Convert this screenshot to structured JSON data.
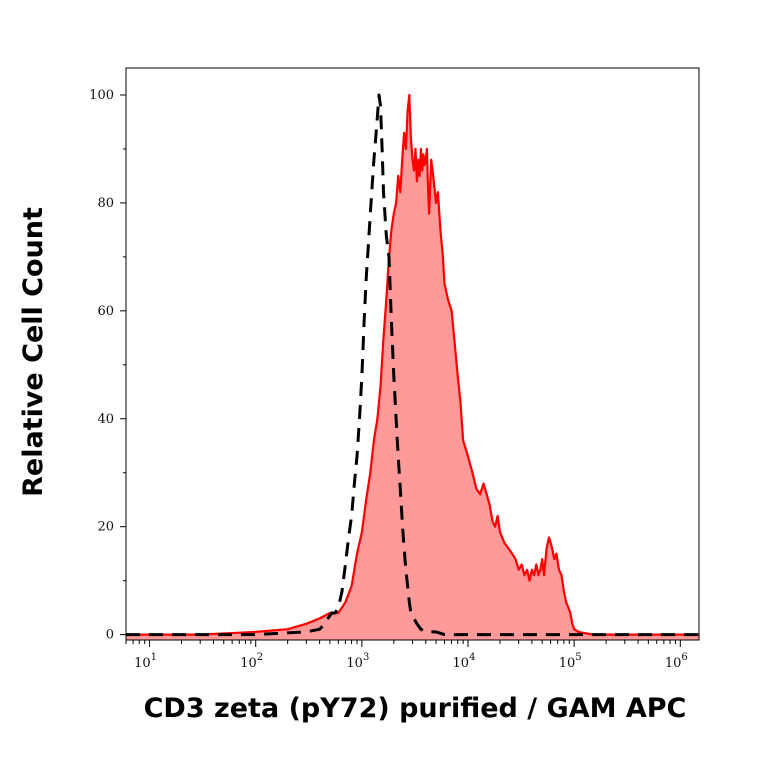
{
  "chart_data": {
    "type": "area",
    "title": "",
    "xlabel": "CD3 zeta (pY72) purified / GAM APC",
    "ylabel": "Relative Cell Count",
    "xscale": "log",
    "xlim": [
      6,
      1500000
    ],
    "ylim": [
      -1,
      105
    ],
    "grid": false,
    "y_ticks": [
      0,
      20,
      40,
      60,
      80,
      100
    ],
    "y_tick_labels": [
      "0",
      "20",
      "40",
      "60",
      "80",
      "100"
    ],
    "x_ticks": [
      {
        "base": "10",
        "exp": "1",
        "value": 10
      },
      {
        "base": "10",
        "exp": "2",
        "value": 100
      },
      {
        "base": "10",
        "exp": "3",
        "value": 1000
      },
      {
        "base": "10",
        "exp": "4",
        "value": 10000
      },
      {
        "base": "10",
        "exp": "5",
        "value": 100000
      },
      {
        "base": "10",
        "exp": "6",
        "value": 1000000
      }
    ],
    "series": [
      {
        "style": "filled",
        "color": "#ff0000",
        "fill": "#ff9a9a",
        "points": [
          [
            6,
            0
          ],
          [
            30,
            0
          ],
          [
            100,
            0.5
          ],
          [
            200,
            1
          ],
          [
            300,
            2
          ],
          [
            400,
            3
          ],
          [
            500,
            4
          ],
          [
            600,
            4
          ],
          [
            700,
            6
          ],
          [
            800,
            9
          ],
          [
            900,
            15
          ],
          [
            1000,
            19
          ],
          [
            1100,
            25
          ],
          [
            1200,
            30
          ],
          [
            1300,
            36
          ],
          [
            1400,
            40
          ],
          [
            1500,
            46
          ],
          [
            1600,
            55
          ],
          [
            1700,
            62
          ],
          [
            1800,
            70
          ],
          [
            1900,
            75
          ],
          [
            2000,
            78
          ],
          [
            2100,
            80
          ],
          [
            2200,
            85
          ],
          [
            2300,
            82
          ],
          [
            2400,
            88
          ],
          [
            2500,
            93
          ],
          [
            2600,
            90
          ],
          [
            2700,
            97
          ],
          [
            2800,
            100
          ],
          [
            2900,
            92
          ],
          [
            3000,
            88
          ],
          [
            3100,
            86
          ],
          [
            3200,
            90
          ],
          [
            3300,
            84
          ],
          [
            3400,
            88
          ],
          [
            3500,
            85
          ],
          [
            3600,
            90
          ],
          [
            3700,
            86
          ],
          [
            3800,
            89
          ],
          [
            3900,
            87
          ],
          [
            4000,
            88
          ],
          [
            4100,
            90
          ],
          [
            4200,
            83
          ],
          [
            4300,
            78
          ],
          [
            4500,
            88
          ],
          [
            4700,
            85
          ],
          [
            5000,
            80
          ],
          [
            5200,
            82
          ],
          [
            5500,
            75
          ],
          [
            5800,
            70
          ],
          [
            6000,
            65
          ],
          [
            6500,
            62
          ],
          [
            7000,
            60
          ],
          [
            7500,
            54
          ],
          [
            8000,
            48
          ],
          [
            8500,
            43
          ],
          [
            9000,
            36
          ],
          [
            10000,
            33
          ],
          [
            11000,
            30
          ],
          [
            12000,
            27
          ],
          [
            13000,
            26
          ],
          [
            14000,
            28
          ],
          [
            15000,
            26
          ],
          [
            16000,
            24
          ],
          [
            17000,
            21
          ],
          [
            18000,
            20
          ],
          [
            19000,
            22
          ],
          [
            20000,
            19
          ],
          [
            21000,
            18
          ],
          [
            22000,
            17
          ],
          [
            24000,
            16
          ],
          [
            26000,
            15
          ],
          [
            28000,
            14
          ],
          [
            30000,
            12
          ],
          [
            32000,
            13
          ],
          [
            34000,
            11
          ],
          [
            36000,
            12
          ],
          [
            38000,
            10
          ],
          [
            40000,
            12
          ],
          [
            42000,
            11
          ],
          [
            44000,
            13
          ],
          [
            46000,
            11
          ],
          [
            48000,
            12
          ],
          [
            50000,
            14
          ],
          [
            52000,
            11
          ],
          [
            55000,
            16
          ],
          [
            58000,
            18
          ],
          [
            60000,
            17
          ],
          [
            62000,
            16
          ],
          [
            65000,
            14
          ],
          [
            68000,
            15
          ],
          [
            72000,
            12
          ],
          [
            76000,
            11
          ],
          [
            80000,
            8
          ],
          [
            84000,
            6
          ],
          [
            88000,
            5
          ],
          [
            92000,
            4
          ],
          [
            96000,
            2
          ],
          [
            100000,
            1
          ],
          [
            110000,
            0.5
          ],
          [
            150000,
            0
          ],
          [
            500000,
            0
          ],
          [
            1500000,
            0
          ]
        ]
      },
      {
        "style": "dashed",
        "color": "#000000",
        "points": [
          [
            6,
            0
          ],
          [
            100,
            0
          ],
          [
            300,
            0.5
          ],
          [
            400,
            1
          ],
          [
            450,
            2
          ],
          [
            480,
            3
          ],
          [
            520,
            4
          ],
          [
            560,
            4
          ],
          [
            600,
            5
          ],
          [
            650,
            8
          ],
          [
            700,
            13
          ],
          [
            750,
            18
          ],
          [
            800,
            22
          ],
          [
            850,
            28
          ],
          [
            900,
            33
          ],
          [
            950,
            40
          ],
          [
            1000,
            48
          ],
          [
            1050,
            58
          ],
          [
            1100,
            66
          ],
          [
            1150,
            72
          ],
          [
            1200,
            78
          ],
          [
            1250,
            83
          ],
          [
            1300,
            88
          ],
          [
            1350,
            92
          ],
          [
            1400,
            96
          ],
          [
            1450,
            100
          ],
          [
            1500,
            98
          ],
          [
            1550,
            90
          ],
          [
            1600,
            82
          ],
          [
            1700,
            74
          ],
          [
            1800,
            70
          ],
          [
            1900,
            58
          ],
          [
            2000,
            48
          ],
          [
            2100,
            40
          ],
          [
            2200,
            33
          ],
          [
            2300,
            27
          ],
          [
            2400,
            21
          ],
          [
            2500,
            16
          ],
          [
            2600,
            12
          ],
          [
            2700,
            9
          ],
          [
            2800,
            6
          ],
          [
            2900,
            4
          ],
          [
            3100,
            3
          ],
          [
            3300,
            2
          ],
          [
            3600,
            1
          ],
          [
            4000,
            0.5
          ],
          [
            5000,
            0.5
          ],
          [
            6000,
            0
          ],
          [
            10000,
            0
          ],
          [
            1500000,
            0
          ]
        ]
      }
    ]
  }
}
